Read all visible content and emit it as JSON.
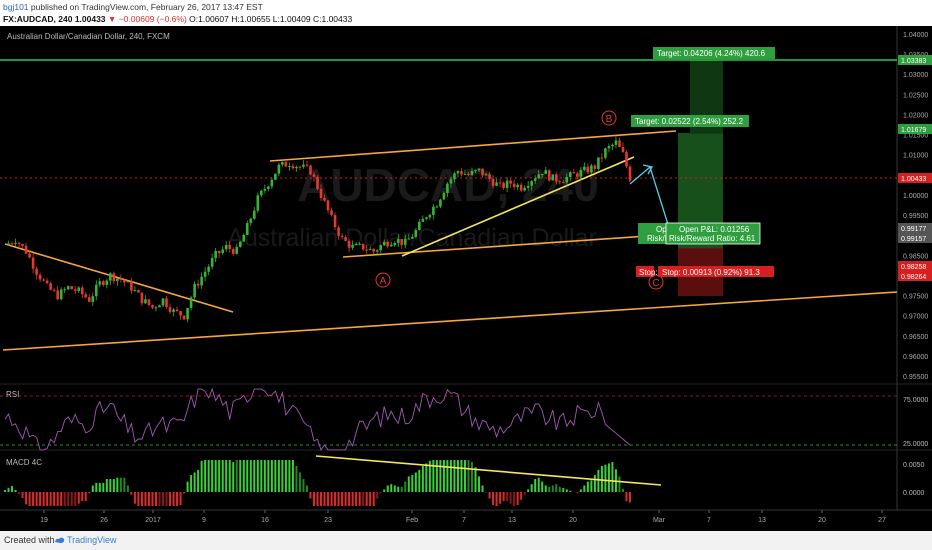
{
  "header": {
    "user": "bgj101",
    "published": "published on TradingView.com, February 26, 2017 13:47 EST",
    "symbol": "FX:AUDCAD, 240",
    "last": "1.00433",
    "change": "−0.00609 (−0.6%)",
    "ohlc": "O:1.00607 H:1.00655 L:1.00409 C:1.00433"
  },
  "chart": {
    "title": "Australian Dollar/Canadian Dollar, 240, FXCM",
    "watermark_symbol": "AUDCAD, 240",
    "watermark_name": "Australian Dollar/Canadian Dollar",
    "price_ticks": [
      "1.04000",
      "1.03500",
      "1.03000",
      "1.02500",
      "1.02000",
      "1.01500",
      "1.01000",
      "1.00500",
      "1.00000",
      "0.99500",
      "0.99000",
      "0.98500",
      "0.98000",
      "0.97500",
      "0.97000",
      "0.96500",
      "0.96000",
      "0.95500"
    ],
    "price_tags": [
      {
        "text": "1.03383",
        "color": "#2e9e3e"
      },
      {
        "text": "1.01679",
        "color": "#2e9e3e"
      },
      {
        "text": "1.00433",
        "color": "#d62020"
      },
      {
        "text": "0.99177",
        "color": "#555555"
      },
      {
        "text": "0.99157",
        "color": "#555555"
      },
      {
        "text": "0.98258",
        "color": "#d62020"
      },
      {
        "text": "0.98264",
        "color": "#d62020"
      }
    ],
    "x_ticks": [
      "19",
      "26",
      "2017",
      "9",
      "16",
      "23",
      "Feb",
      "7",
      "13",
      "20",
      "Mar",
      "7",
      "13",
      "20",
      "27"
    ],
    "labels": {
      "target_big": "Target: 0.04206 (4.24%) 420.6",
      "target_small": "Target: 0.02522 (2.54%) 252.2",
      "stop": "Stop: 0.00913 (0.92%) 91.3",
      "stop_left": "Stop:",
      "pnl": "Open P&L: 0.01256",
      "rr": "Risk/Reward Ratio: 4.61",
      "pnl_hidden": "Ope",
      "rr_hidden": "Risk/R"
    },
    "waves": [
      "A",
      "B",
      "C"
    ],
    "colors": {
      "up": "#35b534",
      "down": "#e33a2f",
      "orange": "#f7a53c",
      "yellow": "#f5e65a",
      "target": "#2e9e3e",
      "stop": "#d62020",
      "cyan": "#4fd0e6"
    }
  },
  "rsi": {
    "label": "RSI",
    "ticks": [
      "75.0000",
      "25.0000"
    ]
  },
  "macd": {
    "label": "MACD 4C",
    "ticks": [
      "0.0050",
      "0.0000"
    ]
  },
  "footer": {
    "created": "Created with",
    "brand": "TradingView"
  },
  "chart_data": {
    "type": "candlestick",
    "title": "Australian Dollar/Canadian Dollar, 240, FXCM",
    "ylim": [
      0.955,
      1.04
    ],
    "close_path": [
      [
        0,
        0.9875
      ],
      [
        3,
        0.989
      ],
      [
        6,
        0.986
      ],
      [
        9,
        0.981
      ],
      [
        12,
        0.977
      ],
      [
        15,
        0.975
      ],
      [
        18,
        0.977
      ],
      [
        21,
        0.976
      ],
      [
        24,
        0.974
      ],
      [
        27,
        0.978
      ],
      [
        30,
        0.98
      ],
      [
        33,
        0.979
      ],
      [
        36,
        0.977
      ],
      [
        39,
        0.974
      ],
      [
        42,
        0.972
      ],
      [
        45,
        0.974
      ],
      [
        48,
        0.971
      ],
      [
        51,
        0.97
      ],
      [
        54,
        0.977
      ],
      [
        57,
        0.981
      ],
      [
        60,
        0.985
      ],
      [
        63,
        0.987
      ],
      [
        66,
        0.986
      ],
      [
        69,
        0.992
      ],
      [
        72,
        0.999
      ],
      [
        75,
        1.003
      ],
      [
        78,
        1.007
      ],
      [
        81,
        1.008
      ],
      [
        84,
        1.007
      ],
      [
        87,
        1.006
      ],
      [
        90,
        1.0
      ],
      [
        93,
        0.994
      ],
      [
        96,
        0.989
      ],
      [
        99,
        0.987
      ],
      [
        102,
        0.987
      ],
      [
        105,
        0.986
      ],
      [
        108,
        0.988
      ],
      [
        111,
        0.989
      ],
      [
        114,
        0.988
      ],
      [
        117,
        0.991
      ],
      [
        120,
        0.995
      ],
      [
        123,
        0.998
      ],
      [
        126,
        1.003
      ],
      [
        129,
        1.006
      ],
      [
        132,
        1.005
      ],
      [
        135,
        1.006
      ],
      [
        138,
        1.004
      ],
      [
        141,
        1.002
      ],
      [
        144,
        1.003
      ],
      [
        147,
        1.002
      ],
      [
        150,
        1.004
      ],
      [
        153,
        1.006
      ],
      [
        156,
        1.004
      ],
      [
        159,
        1.004
      ],
      [
        162,
        1.005
      ],
      [
        165,
        1.006
      ],
      [
        168,
        1.007
      ],
      [
        171,
        1.011
      ],
      [
        174,
        1.013
      ],
      [
        176,
        1.01
      ],
      [
        178,
        1.0043
      ]
    ]
  }
}
